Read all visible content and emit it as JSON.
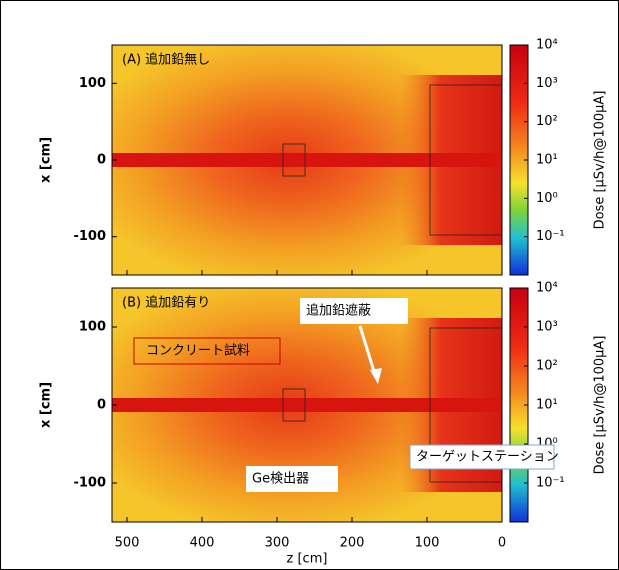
{
  "chart_data": [
    {
      "type": "heatmap",
      "panel_label": "(A) 追加鉛無し",
      "ylabel": "x [cm]",
      "xlim": [
        520,
        0
      ],
      "xticks": [
        500,
        400,
        300,
        200,
        100,
        0
      ],
      "ylim": [
        -150,
        150
      ],
      "yticks": [
        -100,
        0,
        100
      ],
      "colorbar": {
        "label": "Dose [μSv/h@100μA]",
        "scale": "log",
        "lim": [
          0.01,
          10000
        ],
        "ticks": [
          {
            "value": 10000,
            "label": "10⁴"
          },
          {
            "value": 1000,
            "label": "10³"
          },
          {
            "value": 100,
            "label": "10²"
          },
          {
            "value": 10,
            "label": "10¹"
          },
          {
            "value": 1,
            "label": "10⁰"
          },
          {
            "value": 0.1,
            "label": "10⁻¹"
          }
        ]
      }
    },
    {
      "type": "heatmap",
      "panel_label": "(B) 追加鉛有り",
      "ylabel": "x [cm]",
      "xlabel": "z [cm]",
      "xlim": [
        520,
        0
      ],
      "xticks": [
        500,
        400,
        300,
        200,
        100,
        0
      ],
      "ylim": [
        -150,
        150
      ],
      "yticks": [
        -100,
        0,
        100
      ],
      "annotations": [
        "追加鉛遮蔽",
        "コンクリート試料",
        "Ge検出器",
        "ターゲットステーション"
      ],
      "colorbar": {
        "label": "Dose [μSv/h@100μA]",
        "scale": "log",
        "lim": [
          0.01,
          10000
        ],
        "ticks": [
          {
            "value": 10000,
            "label": "10⁴"
          },
          {
            "value": 1000,
            "label": "10³"
          },
          {
            "value": 100,
            "label": "10²"
          },
          {
            "value": 10,
            "label": "10¹"
          },
          {
            "value": 1,
            "label": "10⁰"
          },
          {
            "value": 0.1,
            "label": "10⁻¹"
          }
        ]
      }
    }
  ]
}
